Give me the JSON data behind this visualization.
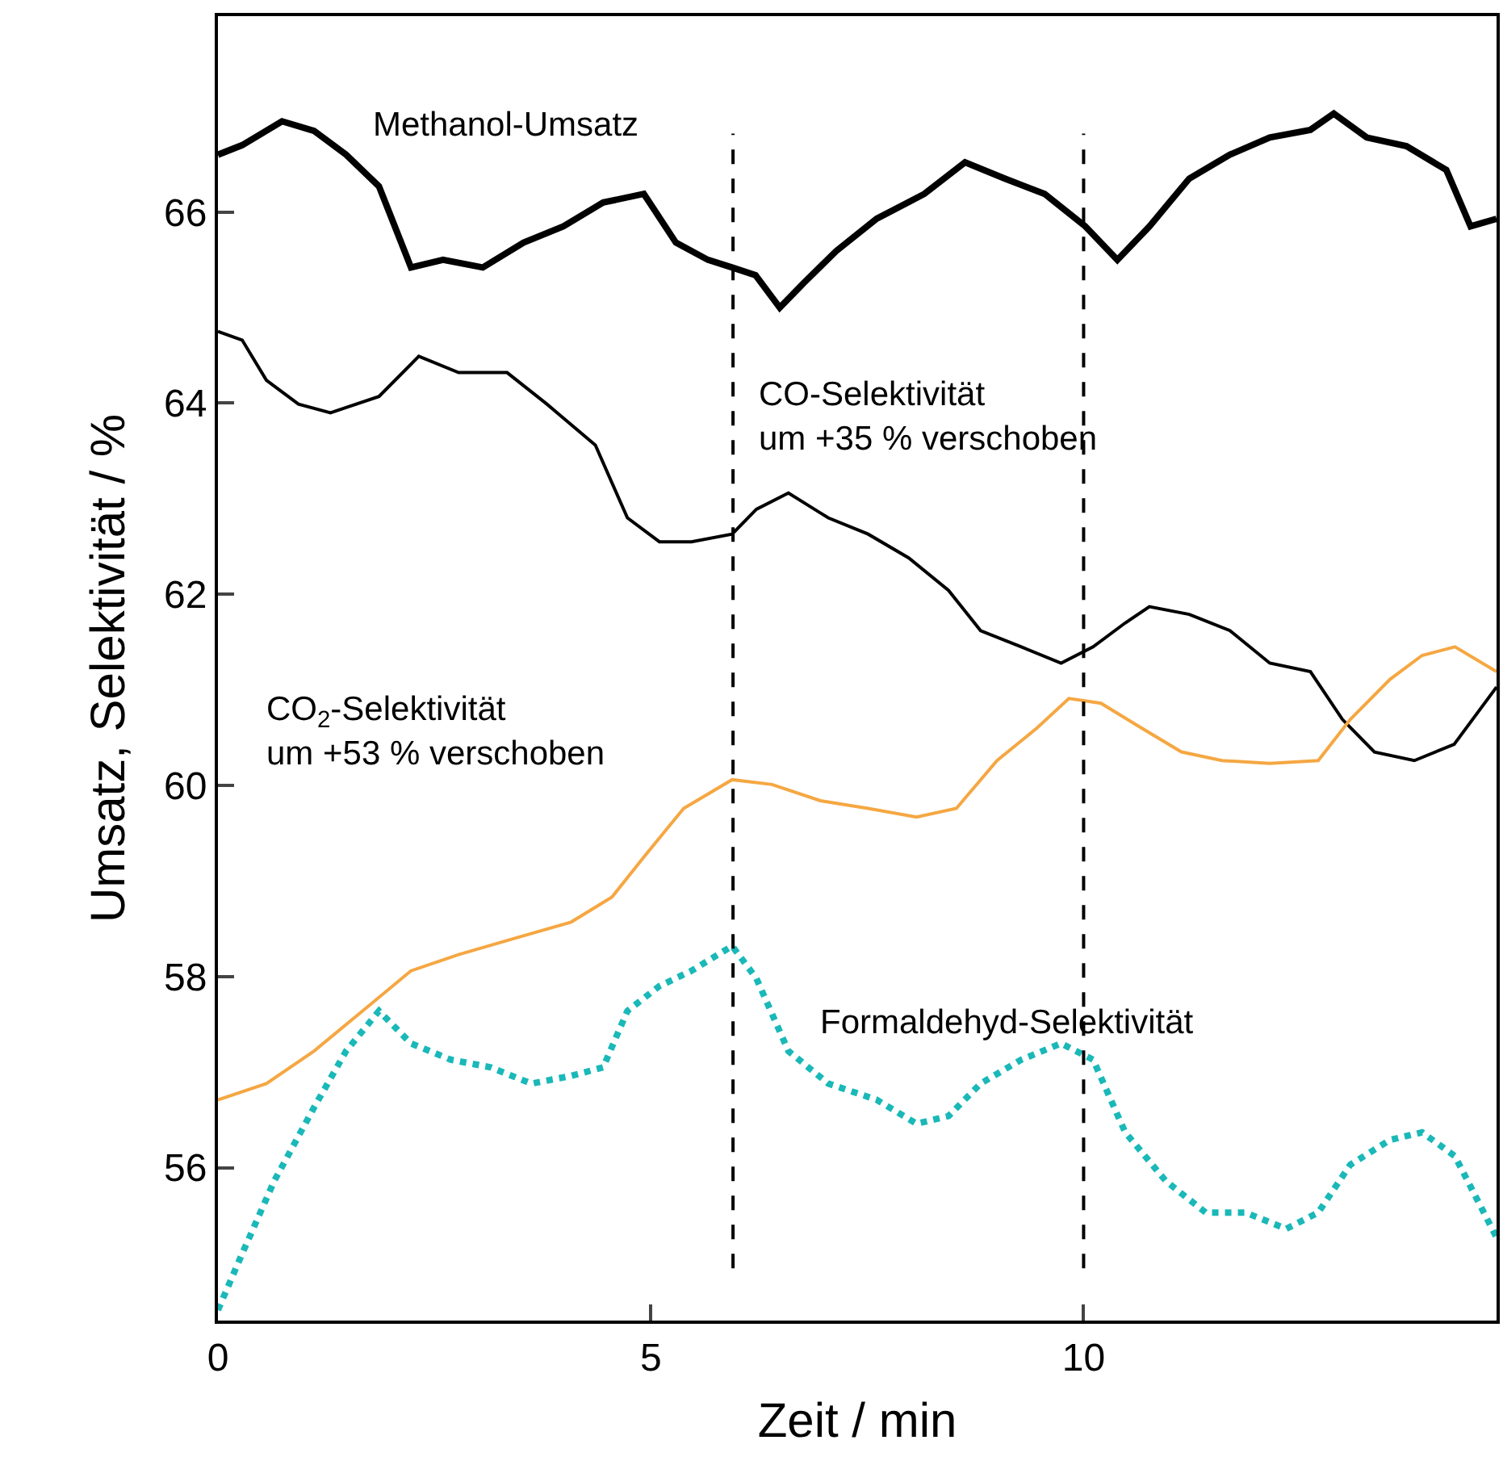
{
  "chart_data": {
    "type": "line",
    "xlabel": "Zeit / min",
    "ylabel": "Umsatz, Selektivität / %",
    "xlim": [
      0,
      14.77
    ],
    "xticks": [
      0,
      5,
      10
    ],
    "ylim": [
      54.4,
      68.05
    ],
    "yticks": [
      56,
      58,
      60,
      62,
      64,
      66
    ],
    "series": [
      {
        "color": "#000000",
        "line_style": "solid",
        "x": [
          0,
          0.28,
          0.74,
          1.11,
          1.48,
          1.86,
          2.23,
          2.6,
          3.06,
          3.53,
          3.99,
          4.45,
          4.92,
          5.29,
          5.66,
          5.94,
          6.21,
          6.49,
          6.77,
          7.14,
          7.61,
          8.16,
          8.63,
          9.09,
          9.55,
          10.02,
          10.39,
          10.76,
          11.22,
          11.69,
          12.15,
          12.62,
          12.89,
          13.27,
          13.73,
          14.19,
          14.47,
          14.77
        ],
        "values": [
          66.6,
          66.7,
          66.95,
          66.85,
          66.6,
          66.27,
          65.42,
          65.5,
          65.42,
          65.68,
          65.85,
          66.1,
          66.19,
          65.68,
          65.5,
          65.42,
          65.34,
          65.0,
          65.26,
          65.59,
          65.93,
          66.19,
          66.52,
          66.35,
          66.19,
          65.85,
          65.5,
          65.85,
          66.35,
          66.6,
          66.78,
          66.86,
          67.03,
          66.78,
          66.69,
          66.44,
          65.85,
          65.93
        ]
      },
      {
        "color": "#000000",
        "line_style": "solid",
        "x": [
          0,
          0.28,
          0.56,
          0.93,
          1.3,
          1.86,
          2.32,
          2.78,
          3.34,
          3.8,
          4.36,
          4.73,
          5.1,
          5.47,
          5.94,
          6.22,
          6.59,
          7.05,
          7.51,
          7.98,
          8.44,
          8.81,
          9.28,
          9.74,
          10.11,
          10.48,
          10.76,
          11.22,
          11.69,
          12.15,
          12.62,
          12.99,
          13.36,
          13.82,
          14.28,
          14.77
        ],
        "values": [
          64.75,
          64.66,
          64.24,
          63.99,
          63.9,
          64.07,
          64.49,
          64.32,
          64.32,
          63.99,
          63.56,
          62.8,
          62.55,
          62.55,
          62.63,
          62.89,
          63.06,
          62.8,
          62.63,
          62.38,
          62.04,
          61.62,
          61.45,
          61.28,
          61.45,
          61.7,
          61.87,
          61.79,
          61.62,
          61.28,
          61.19,
          60.69,
          60.35,
          60.26,
          60.43,
          61.03
        ]
      },
      {
        "color": "#f5a742",
        "line_style": "solid",
        "x": [
          0,
          0.56,
          1.11,
          1.67,
          2.23,
          2.78,
          3.43,
          4.08,
          4.55,
          4.92,
          5.38,
          5.94,
          6.4,
          6.96,
          7.51,
          8.07,
          8.53,
          9.0,
          9.46,
          9.83,
          10.2,
          10.67,
          11.13,
          11.6,
          12.15,
          12.71,
          13.08,
          13.54,
          13.91,
          14.29,
          14.77
        ],
        "values": [
          56.71,
          56.88,
          57.22,
          57.64,
          58.06,
          58.23,
          58.4,
          58.57,
          58.83,
          59.25,
          59.76,
          60.06,
          60.01,
          59.84,
          59.76,
          59.67,
          59.76,
          60.26,
          60.6,
          60.91,
          60.86,
          60.6,
          60.35,
          60.26,
          60.23,
          60.26,
          60.69,
          61.11,
          61.36,
          61.45,
          61.19
        ]
      },
      {
        "color": "#1ab8b8",
        "line_style": "dotted",
        "x": [
          0,
          0.28,
          0.65,
          1.11,
          1.48,
          1.86,
          2.23,
          2.69,
          3.15,
          3.62,
          4.08,
          4.45,
          4.73,
          5.1,
          5.47,
          5.94,
          6.22,
          6.59,
          7.05,
          7.61,
          8.07,
          8.44,
          8.81,
          9.28,
          9.74,
          10.11,
          10.48,
          10.95,
          11.41,
          11.87,
          12.34,
          12.71,
          13.08,
          13.54,
          13.91,
          14.29,
          14.77
        ],
        "values": [
          54.51,
          55.1,
          55.86,
          56.63,
          57.22,
          57.64,
          57.3,
          57.13,
          57.05,
          56.88,
          56.96,
          57.05,
          57.64,
          57.9,
          58.06,
          58.32,
          57.98,
          57.22,
          56.88,
          56.71,
          56.46,
          56.54,
          56.88,
          57.13,
          57.3,
          57.13,
          56.37,
          55.86,
          55.53,
          55.53,
          55.36,
          55.53,
          56.03,
          56.29,
          56.37,
          56.12,
          55.27
        ]
      }
    ],
    "ref_lines": [
      {
        "axis": "x",
        "value": 5.95,
        "color": "#000000",
        "line_style": "dashed"
      },
      {
        "axis": "x",
        "value": 10,
        "color": "#000000",
        "line_style": "dashed"
      }
    ],
    "annotations": [
      "Methanol-Umsatz",
      "CO-Selektivität\num +35 % verschoben",
      "CO$_{2}$-Selektivität\num +53 % verschoben",
      "Formaldehyd-Selektivität"
    ]
  }
}
